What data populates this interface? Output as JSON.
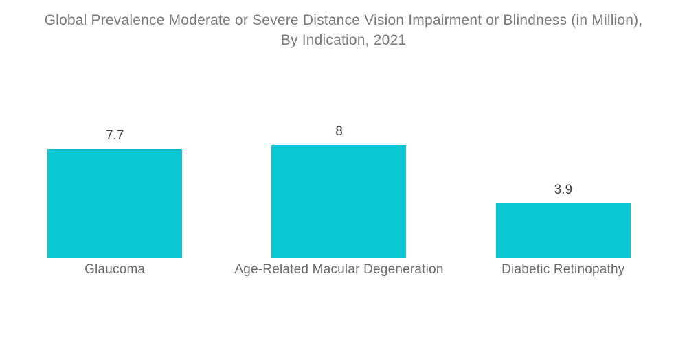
{
  "title": {
    "line1": "Global Prevalence Moderate or Severe Distance Vision Impairment or Blindness (in Million),",
    "line2": "By Indication, 2021"
  },
  "chart_data": {
    "type": "bar",
    "title": "Global Prevalence Moderate or Severe Distance Vision Impairment or Blindness (in Million), By Indication, 2021",
    "categories": [
      "Glaucoma",
      "Age-Related Macular Degeneration",
      "Diabetic Retinopathy"
    ],
    "values": [
      7.7,
      8,
      3.9
    ],
    "value_labels": [
      "7.7",
      "8",
      "3.9"
    ],
    "xlabel": "",
    "ylabel": "",
    "ylim": [
      0,
      8
    ],
    "grid": false,
    "legend": false,
    "orientation": "vertical",
    "data_labels_position": "above-bars"
  },
  "colors": {
    "background": "#ffffff",
    "bar": "#0bc7d1",
    "title_text": "#7b7b7b",
    "value_text": "#414141",
    "category_text": "#6b6b6b"
  }
}
